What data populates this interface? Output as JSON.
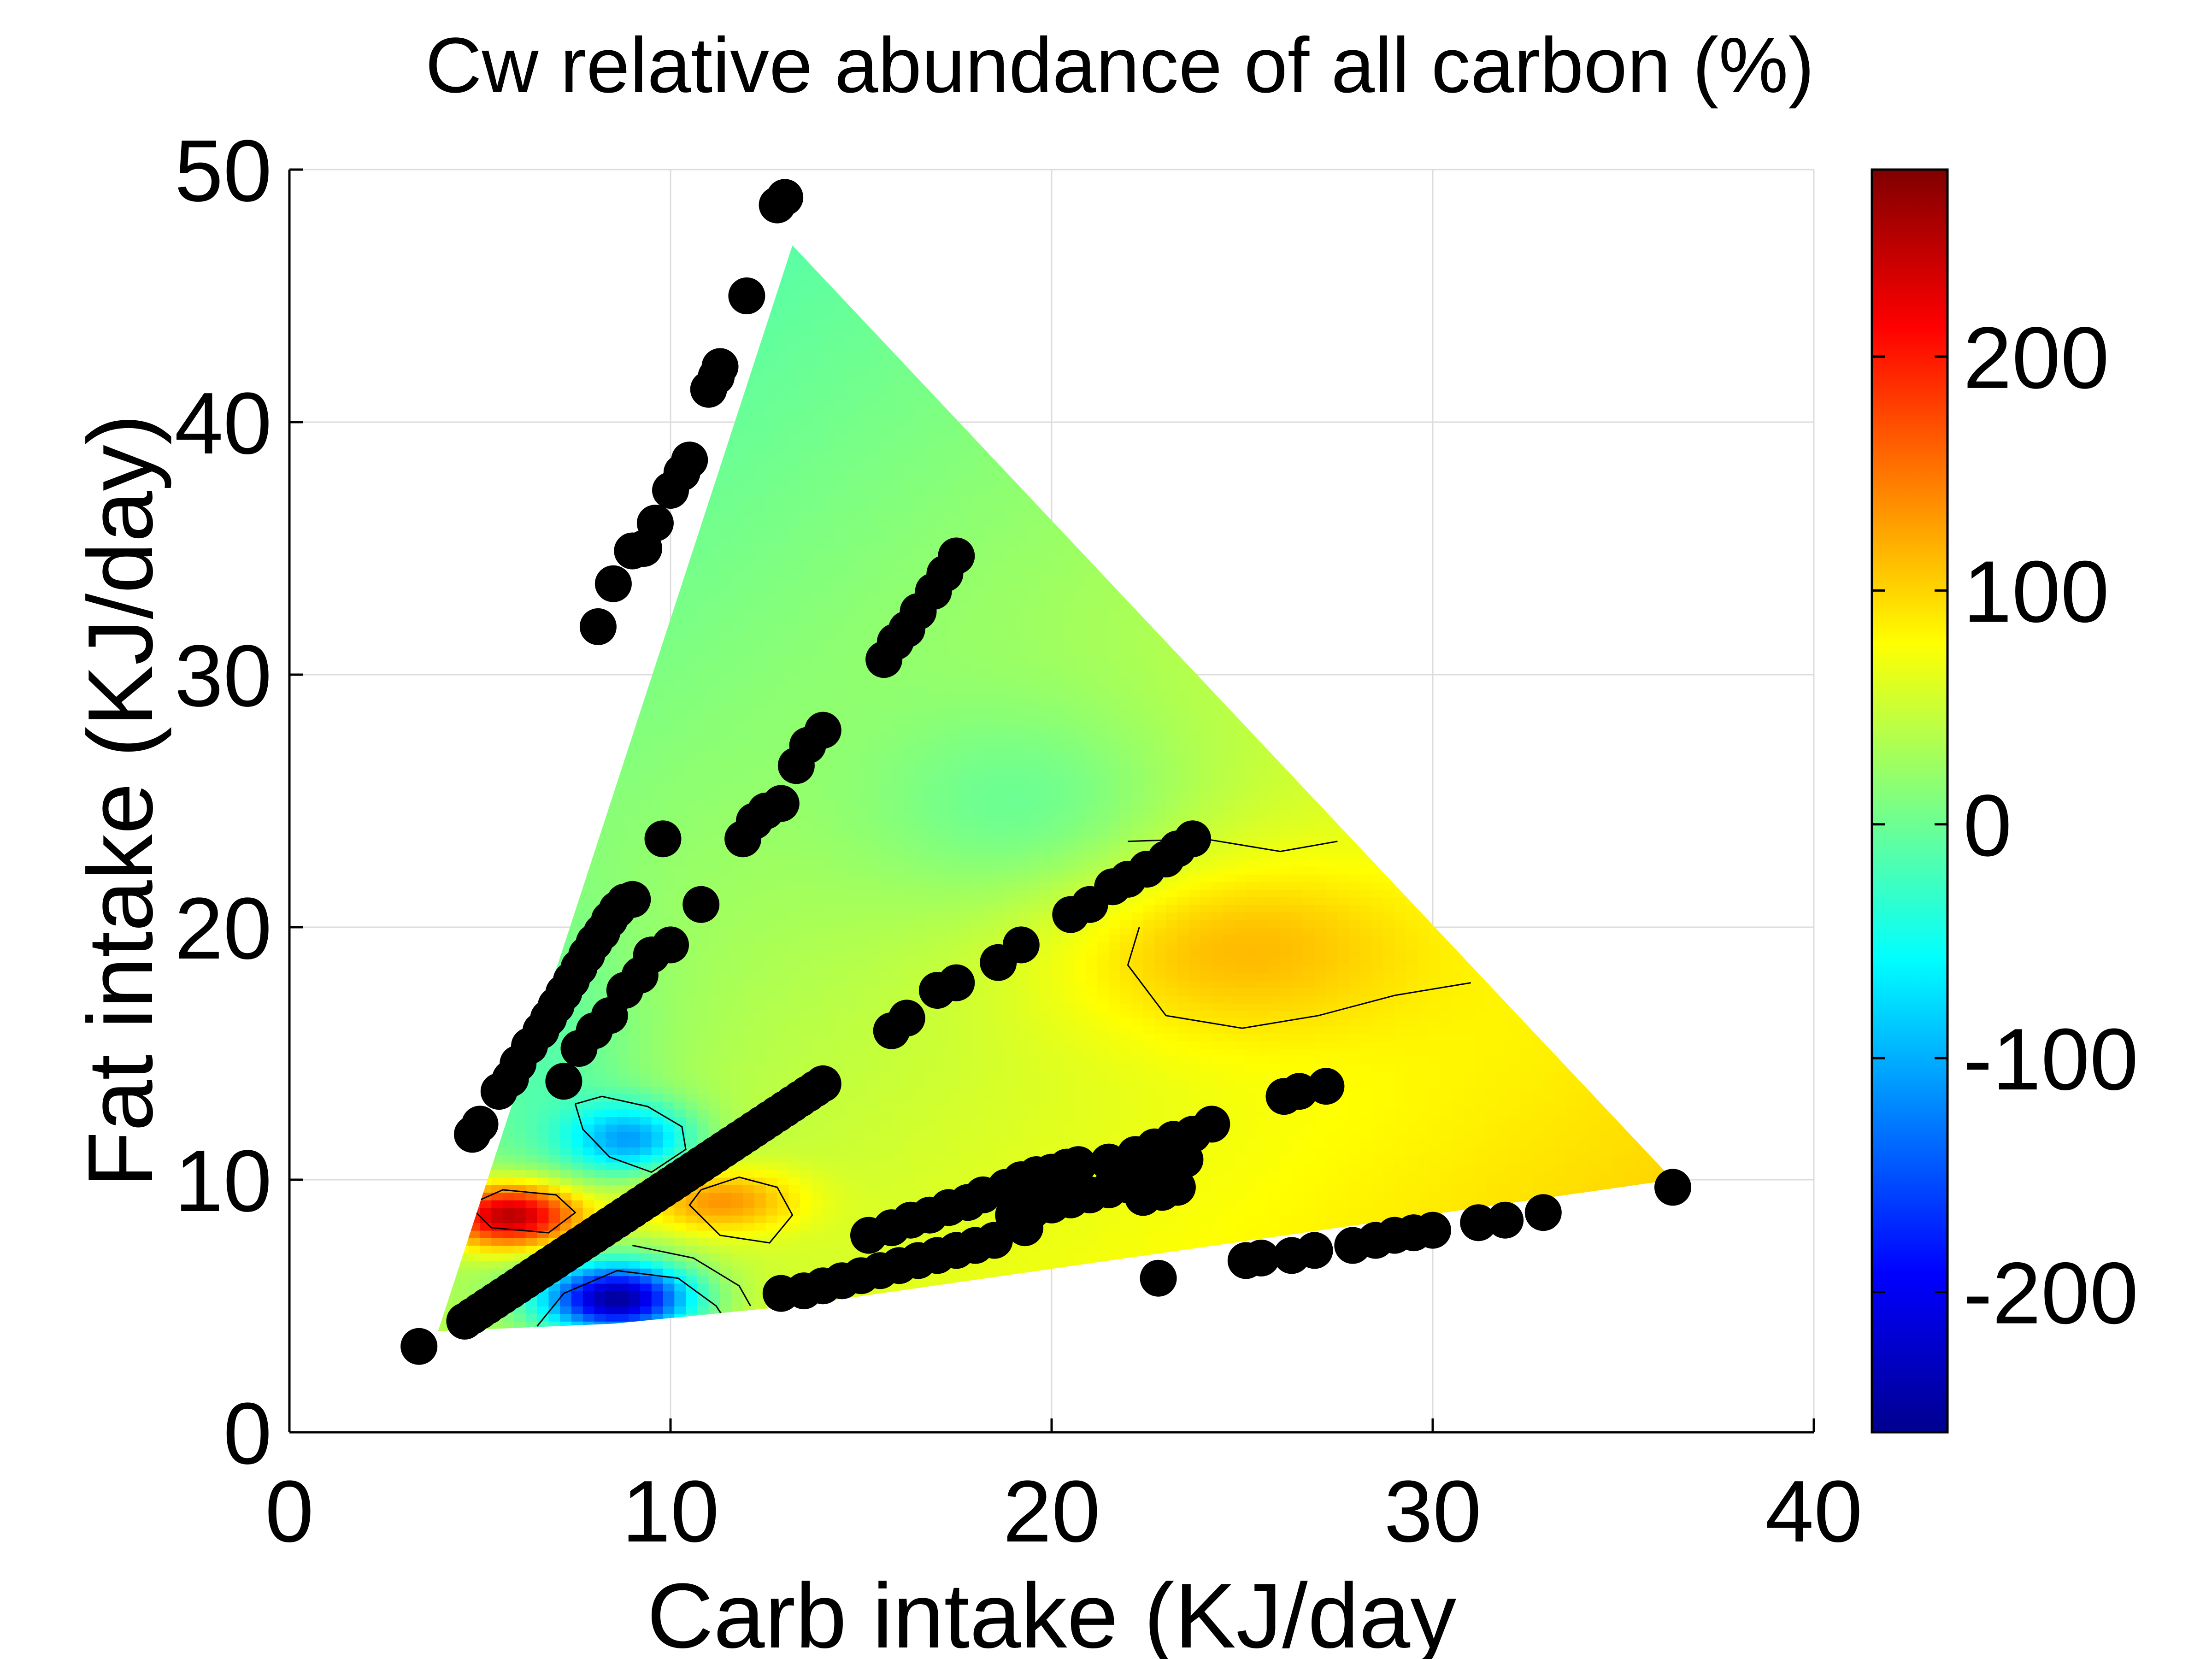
{
  "chart_data": {
    "type": "heatmap",
    "title": "Cw relative abundance of all carbon (%)",
    "xlabel": "Carb intake (KJ/day",
    "ylabel": "Fat intake (KJ/day)",
    "xlim": [
      0,
      40
    ],
    "ylim": [
      0,
      50
    ],
    "xticks": [
      "0",
      "10",
      "20",
      "30",
      "40"
    ],
    "yticks": [
      "0",
      "10",
      "20",
      "30",
      "40",
      "50"
    ],
    "grid": true,
    "colorbar": {
      "range": [
        -260,
        280
      ],
      "ticks": [
        {
          "value": 200,
          "label": "200"
        },
        {
          "value": 100,
          "label": "100"
        },
        {
          "value": 0,
          "label": "0"
        },
        {
          "value": -100,
          "label": "-100"
        },
        {
          "value": -200,
          "label": "-200"
        }
      ],
      "colormap": "jet"
    },
    "hull": [
      [
        3.9,
        4.0
      ],
      [
        13.2,
        47.0
      ],
      [
        36.3,
        10.0
      ],
      [
        13.2,
        5.0
      ],
      [
        8.5,
        4.3
      ]
    ],
    "surface": {
      "base": 40,
      "gradient": {
        "x": 2.2,
        "y": -1.6
      },
      "reference": [
        20,
        25
      ],
      "features": [
        {
          "x": 24.5,
          "y": 19.3,
          "sx": 3.5,
          "sy": 2.5,
          "amp": 55
        },
        {
          "x": 19.5,
          "y": 24.5,
          "sx": 3.0,
          "sy": 3.0,
          "amp": -40
        },
        {
          "x": 5.8,
          "y": 8.6,
          "sx": 1.3,
          "sy": 0.9,
          "amp": 230
        },
        {
          "x": 11.2,
          "y": 9.2,
          "sx": 1.5,
          "sy": 0.9,
          "amp": 90
        },
        {
          "x": 8.6,
          "y": 5.3,
          "sx": 1.4,
          "sy": 1.0,
          "amp": -290
        },
        {
          "x": 9.0,
          "y": 11.6,
          "sx": 1.2,
          "sy": 1.0,
          "amp": -130
        },
        {
          "x": 6.6,
          "y": 14.0,
          "sx": 2.0,
          "sy": 4.0,
          "amp": -40
        }
      ]
    },
    "contours": [
      [
        [
          22.0,
          23.4
        ],
        [
          24.0,
          23.5
        ],
        [
          26.0,
          23.0
        ],
        [
          27.5,
          23.4
        ]
      ],
      [
        [
          22.3,
          20.0
        ],
        [
          22.0,
          18.5
        ],
        [
          23.0,
          16.5
        ],
        [
          25.0,
          16.0
        ],
        [
          27.0,
          16.5
        ],
        [
          29.0,
          17.3
        ],
        [
          31.0,
          17.8
        ]
      ],
      [
        [
          7.5,
          13.0
        ],
        [
          8.2,
          13.3
        ],
        [
          9.4,
          12.9
        ],
        [
          10.3,
          12.1
        ],
        [
          10.4,
          11.2
        ],
        [
          9.5,
          10.3
        ],
        [
          8.4,
          10.9
        ],
        [
          7.7,
          12.0
        ],
        [
          7.5,
          13.0
        ]
      ],
      [
        [
          10.8,
          9.6
        ],
        [
          11.8,
          10.1
        ],
        [
          12.8,
          9.7
        ],
        [
          13.2,
          8.6
        ],
        [
          12.6,
          7.5
        ],
        [
          11.3,
          7.8
        ],
        [
          10.5,
          9.0
        ],
        [
          10.8,
          9.6
        ]
      ],
      [
        [
          4.7,
          9.0
        ],
        [
          5.6,
          9.6
        ],
        [
          7.0,
          9.4
        ],
        [
          7.5,
          8.7
        ],
        [
          6.8,
          7.9
        ],
        [
          5.3,
          8.1
        ],
        [
          4.7,
          9.0
        ]
      ],
      [
        [
          6.5,
          4.2
        ],
        [
          7.2,
          5.5
        ],
        [
          8.6,
          6.4
        ],
        [
          10.2,
          6.1
        ],
        [
          11.2,
          5.0
        ],
        [
          11.5,
          4.3
        ]
      ],
      [
        [
          9.0,
          7.4
        ],
        [
          10.6,
          6.9
        ],
        [
          11.8,
          5.8
        ],
        [
          12.1,
          5.0
        ]
      ],
      [
        [
          6.6,
          22.6
        ],
        [
          6.2,
          21.0
        ],
        [
          5.9,
          20.0
        ]
      ]
    ],
    "series": [
      {
        "x": [
          3.4,
          4.6,
          4.8,
          5.0,
          5.2,
          5.4,
          5.6,
          5.8,
          6.0,
          6.2,
          6.4,
          6.6,
          6.8,
          7.0,
          7.2,
          7.4,
          7.6,
          7.8,
          8.0,
          8.2,
          8.4,
          8.6,
          8.8,
          9.0,
          9.2,
          9.4,
          9.6,
          9.8,
          10.0,
          10.2,
          10.4,
          10.6,
          10.8,
          11.0,
          11.2,
          11.4,
          11.6,
          11.8,
          12.0,
          12.2,
          12.4,
          12.6,
          12.8,
          13.0,
          13.2,
          13.4,
          13.6,
          13.8,
          14.0
        ],
        "y": [
          3.4,
          4.4,
          4.6,
          4.8,
          5.0,
          5.2,
          5.4,
          5.6,
          5.8,
          6.0,
          6.2,
          6.4,
          6.6,
          6.8,
          7.0,
          7.2,
          7.4,
          7.6,
          7.8,
          8.0,
          8.2,
          8.4,
          8.6,
          8.8,
          9.0,
          9.2,
          9.4,
          9.6,
          9.8,
          10.0,
          10.2,
          10.4,
          10.6,
          10.8,
          11.0,
          11.2,
          11.4,
          11.6,
          11.8,
          12.0,
          12.2,
          12.4,
          12.6,
          12.8,
          13.0,
          13.2,
          13.4,
          13.6,
          13.8
        ]
      },
      {
        "x": [
          4.8,
          5.0,
          5.5,
          5.8,
          6.0,
          6.3,
          6.6,
          6.8,
          7.0,
          7.2,
          7.4,
          7.6,
          7.8,
          8.0,
          8.2,
          8.4,
          8.6,
          8.8,
          9.0
        ],
        "y": [
          11.8,
          12.2,
          13.5,
          14.0,
          14.6,
          15.3,
          15.9,
          16.4,
          16.9,
          17.4,
          17.9,
          18.4,
          18.9,
          19.4,
          19.8,
          20.3,
          20.7,
          21.0,
          21.1
        ]
      },
      {
        "x": [
          8.1,
          8.5,
          9.0,
          9.3,
          9.6,
          10.0,
          10.3,
          10.5
        ],
        "y": [
          31.9,
          33.6,
          34.9,
          35.0,
          36.0,
          37.3,
          38.0,
          38.5
        ]
      },
      {
        "x": [
          11.0,
          11.2,
          11.3,
          12.0,
          12.8,
          13.0
        ],
        "y": [
          41.3,
          41.8,
          42.2,
          45.0,
          48.6,
          48.9
        ]
      },
      {
        "x": [
          7.2,
          7.6,
          8.0,
          8.4,
          8.8,
          9.2,
          9.5,
          10.0,
          10.8
        ],
        "y": [
          13.9,
          15.2,
          15.9,
          16.5,
          17.5,
          18.1,
          18.9,
          19.3,
          20.9
        ]
      },
      {
        "x": [
          9.8,
          11.9,
          12.2,
          12.5,
          12.9,
          13.3,
          13.6,
          14.0
        ],
        "y": [
          23.5,
          23.5,
          24.2,
          24.6,
          24.9,
          26.4,
          27.2,
          27.8
        ]
      },
      {
        "x": [
          15.6,
          15.9,
          16.2,
          16.5,
          16.9,
          17.2,
          17.5
        ],
        "y": [
          30.6,
          31.3,
          31.8,
          32.5,
          33.3,
          34.0,
          34.7
        ]
      },
      {
        "x": [
          15.8,
          16.2,
          17.0,
          17.5,
          18.6,
          19.2,
          20.5,
          21.0,
          21.6,
          22.0,
          22.5,
          23.0,
          23.3,
          23.7
        ],
        "y": [
          15.9,
          16.4,
          17.5,
          17.8,
          18.6,
          19.3,
          20.5,
          20.9,
          21.6,
          21.9,
          22.3,
          22.7,
          23.1,
          23.5
        ]
      },
      {
        "x": [
          12.9,
          13.5,
          14.0,
          14.5,
          15.0,
          15.5,
          16.0,
          16.5,
          17.0,
          17.5,
          18.0,
          18.5,
          19.0,
          19.5,
          20.0,
          20.5,
          21.0,
          21.5,
          22.0,
          22.5,
          23.0,
          23.5,
          24.2
        ],
        "y": [
          5.5,
          5.6,
          5.8,
          6.0,
          6.2,
          6.4,
          6.6,
          6.8,
          7.0,
          7.2,
          7.4,
          7.6,
          8.6,
          8.8,
          9.0,
          9.2,
          9.4,
          9.6,
          9.8,
          10.0,
          10.4,
          10.8,
          12.2
        ]
      },
      {
        "x": [
          15.2,
          15.8,
          16.3,
          16.8,
          17.3,
          17.8,
          18.2,
          18.8,
          19.2,
          19.6,
          20.0,
          20.4,
          20.7,
          21.5,
          22.2,
          22.7,
          23.2,
          23.7
        ],
        "y": [
          7.8,
          8.1,
          8.4,
          8.6,
          8.9,
          9.1,
          9.4,
          9.7,
          10.0,
          10.2,
          10.3,
          10.5,
          10.6,
          10.7,
          11.0,
          11.3,
          11.6,
          11.8
        ]
      },
      {
        "x": [
          19.3,
          22.4,
          22.9,
          23.3,
          26.1,
          26.5,
          27.2
        ],
        "y": [
          8.1,
          9.3,
          9.5,
          9.7,
          13.3,
          13.5,
          13.7
        ]
      },
      {
        "x": [
          22.8,
          25.1,
          25.5,
          26.3,
          26.9,
          27.9,
          28.5,
          29.0,
          29.5,
          30.0,
          31.2,
          31.9,
          32.9,
          36.3
        ],
        "y": [
          6.1,
          6.8,
          6.9,
          7.0,
          7.2,
          7.4,
          7.6,
          7.8,
          7.9,
          8.0,
          8.3,
          8.4,
          8.7,
          9.7
        ]
      }
    ]
  }
}
